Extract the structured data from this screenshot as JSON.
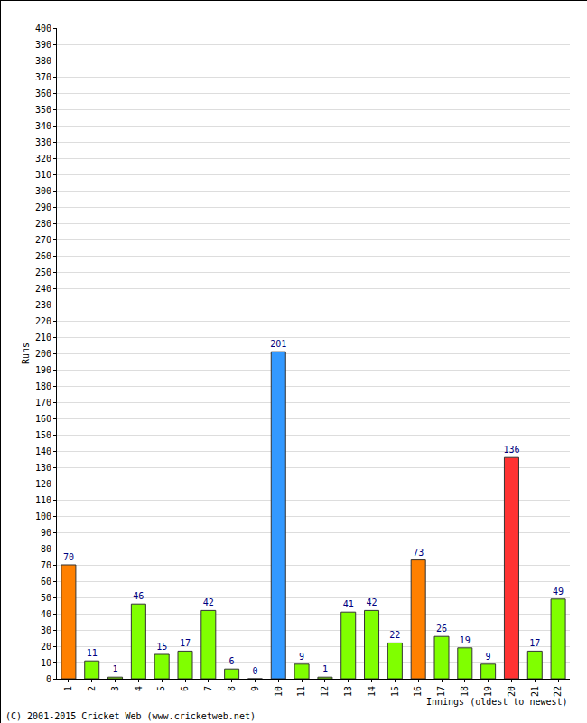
{
  "chart_data": {
    "type": "bar",
    "categories": [
      "1",
      "2",
      "3",
      "4",
      "5",
      "6",
      "7",
      "8",
      "9",
      "10",
      "11",
      "12",
      "13",
      "14",
      "15",
      "16",
      "17",
      "18",
      "19",
      "20",
      "21",
      "22"
    ],
    "values": [
      70,
      11,
      1,
      46,
      15,
      17,
      42,
      6,
      0,
      201,
      9,
      1,
      41,
      42,
      22,
      73,
      26,
      19,
      9,
      136,
      17,
      49
    ],
    "colors": [
      "#ff8000",
      "#80ff00",
      "#80ff00",
      "#80ff00",
      "#80ff00",
      "#80ff00",
      "#80ff00",
      "#80ff00",
      "#80ff00",
      "#3399ff",
      "#80ff00",
      "#80ff00",
      "#80ff00",
      "#80ff00",
      "#80ff00",
      "#ff8000",
      "#80ff00",
      "#80ff00",
      "#80ff00",
      "#ff3333",
      "#80ff00",
      "#80ff00"
    ],
    "ylabel": "Runs",
    "xlabel": "Innings (oldest to newest)",
    "annotations": [
      "(C) 2001-2015 Cricket Web (www.cricketweb.net)"
    ],
    "ylim": [
      0,
      400
    ],
    "yticks": [
      0,
      10,
      20,
      30,
      40,
      50,
      60,
      70,
      80,
      90,
      100,
      110,
      120,
      130,
      140,
      150,
      160,
      170,
      180,
      190,
      200,
      210,
      220,
      230,
      240,
      250,
      260,
      270,
      280,
      290,
      300,
      310,
      320,
      330,
      340,
      350,
      360,
      370,
      380,
      390,
      400
    ],
    "grid": true,
    "data_labels": true
  }
}
